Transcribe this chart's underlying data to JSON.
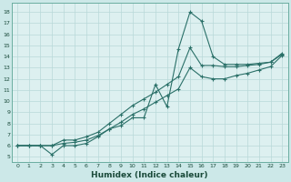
{
  "bg_color": "#cce8e8",
  "plot_bg_color": "#ddf0f0",
  "line_color": "#2a7068",
  "grid_color": "#b8d8d8",
  "xlabel": "Humidex (Indice chaleur)",
  "ylabel_ticks": [
    5,
    6,
    7,
    8,
    9,
    10,
    11,
    12,
    13,
    14,
    15,
    16,
    17,
    18
  ],
  "xlim": [
    -0.5,
    23.5
  ],
  "ylim": [
    4.5,
    18.8
  ],
  "xticks": [
    0,
    1,
    2,
    3,
    4,
    5,
    6,
    7,
    8,
    9,
    10,
    11,
    12,
    13,
    14,
    15,
    16,
    17,
    18,
    19,
    20,
    21,
    22,
    23
  ],
  "lines": [
    {
      "x": [
        0,
        1,
        2,
        3,
        4,
        5,
        6,
        7,
        8,
        9,
        10,
        11,
        12,
        13,
        14,
        15,
        16,
        17,
        18,
        19,
        20,
        21,
        22,
        23
      ],
      "y": [
        6.0,
        6.0,
        6.0,
        5.2,
        6.0,
        6.0,
        6.2,
        6.8,
        7.5,
        7.8,
        8.5,
        8.5,
        11.5,
        9.5,
        14.7,
        18.0,
        17.2,
        14.0,
        13.3,
        13.3,
        13.3,
        13.4,
        13.5,
        14.2
      ]
    },
    {
      "x": [
        0,
        1,
        2,
        3,
        4,
        5,
        6,
        7,
        8,
        9,
        10,
        11,
        12,
        13,
        14,
        15,
        16,
        17,
        18,
        19,
        20,
        21,
        22,
        23
      ],
      "y": [
        6.0,
        6.0,
        6.0,
        6.0,
        6.5,
        6.5,
        6.8,
        7.2,
        8.0,
        8.8,
        9.6,
        10.2,
        10.8,
        11.5,
        12.2,
        14.8,
        13.2,
        13.2,
        13.1,
        13.1,
        13.2,
        13.3,
        13.5,
        14.3
      ]
    },
    {
      "x": [
        0,
        1,
        2,
        3,
        4,
        5,
        6,
        7,
        8,
        9,
        10,
        11,
        12,
        13,
        14,
        15,
        16,
        17,
        18,
        19,
        20,
        21,
        22,
        23
      ],
      "y": [
        6.0,
        6.0,
        6.0,
        6.0,
        6.2,
        6.3,
        6.5,
        6.9,
        7.5,
        8.1,
        8.8,
        9.3,
        9.9,
        10.5,
        11.1,
        13.0,
        12.2,
        12.0,
        12.0,
        12.3,
        12.5,
        12.8,
        13.1,
        14.1
      ]
    }
  ]
}
